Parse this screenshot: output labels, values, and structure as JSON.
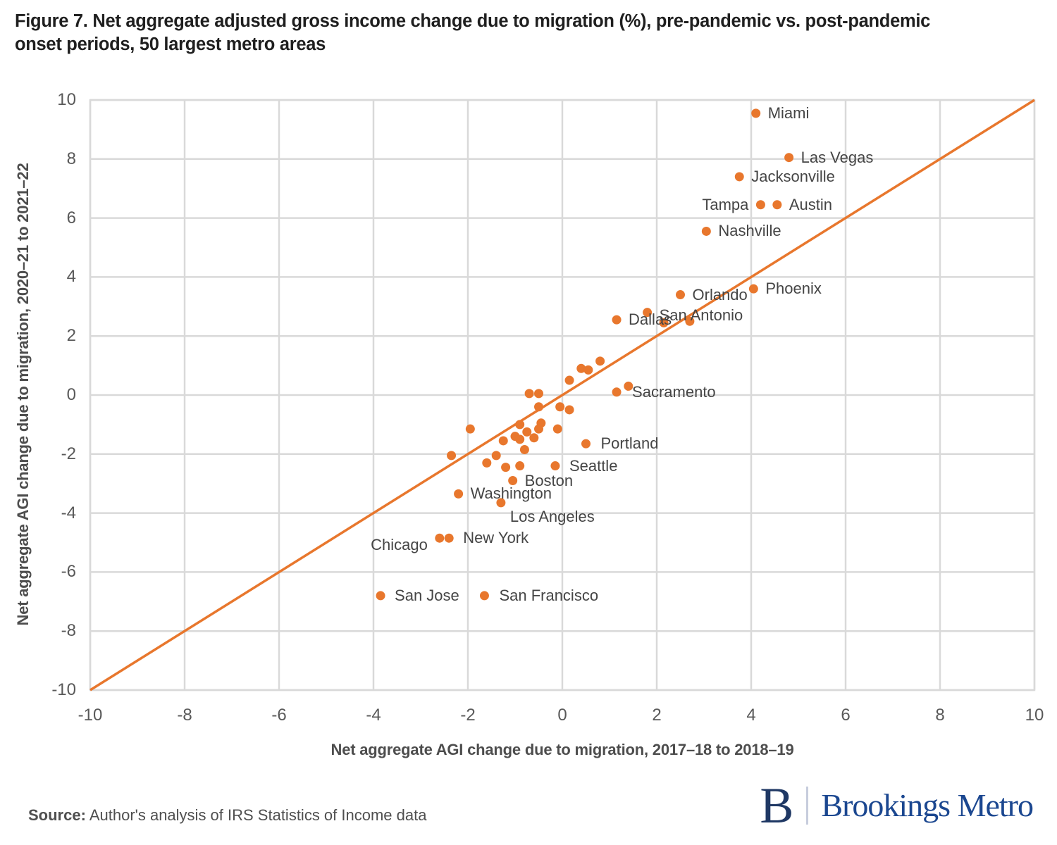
{
  "figure": {
    "title_lines": [
      "Figure 7. Net aggregate adjusted gross income change due to migration (%), pre-pandemic vs. post-pandemic",
      "onset periods, 50 largest metro areas"
    ],
    "source_label": "Source:",
    "source_text": "Author's analysis of IRS Statistics of Income data",
    "logo": {
      "monogram": "B",
      "name": "Brookings Metro"
    }
  },
  "colors": {
    "accent_orange": "#E8772D",
    "gridline": "#D9D9D9",
    "title_text": "#1F1F1F",
    "point_label_text": "#454545",
    "tick_text": "#595959",
    "logo_navy": "#1F3864",
    "logo_blue": "#1B4790"
  },
  "chart_data": {
    "type": "scatter",
    "title": "Figure 7. Net aggregate adjusted gross income change due to migration (%), pre-pandemic vs. post-pandemic onset periods, 50 largest metro areas",
    "xlabel": "Net aggregate AGI change due to migration, 2017–18 to 2018–19",
    "ylabel": "Net aggregate AGI change due to migration, 2020–21 to 2021–22",
    "xlim": [
      -10,
      10
    ],
    "ylim": [
      -10,
      10
    ],
    "xticks": [
      -10,
      -8,
      -6,
      -4,
      -2,
      0,
      2,
      4,
      6,
      8,
      10
    ],
    "yticks": [
      -10,
      -8,
      -6,
      -4,
      -2,
      0,
      2,
      4,
      6,
      8,
      10
    ],
    "grid": true,
    "legend": false,
    "reference_line": {
      "name": "identity-line y=x",
      "from": [
        -10,
        -10
      ],
      "to": [
        10,
        10
      ]
    },
    "points": [
      {
        "label": "Miami",
        "x": 4.1,
        "y": 9.55
      },
      {
        "label": "Las Vegas",
        "x": 4.8,
        "y": 8.05
      },
      {
        "label": "Jacksonville",
        "x": 3.75,
        "y": 7.4
      },
      {
        "label": "Tampa",
        "x": 4.2,
        "y": 6.45,
        "side": "left"
      },
      {
        "label": "Austin",
        "x": 4.55,
        "y": 6.45
      },
      {
        "label": "Nashville",
        "x": 3.05,
        "y": 5.55
      },
      {
        "label": "Phoenix",
        "x": 4.05,
        "y": 3.6
      },
      {
        "label": "Orlando",
        "x": 2.5,
        "y": 3.4
      },
      {
        "label": "San Antonio",
        "x": 1.8,
        "y": 2.8,
        "dy": 4
      },
      {
        "label": "Dallas",
        "x": 1.15,
        "y": 2.55
      },
      {
        "label": "Sacramento",
        "x": 1.15,
        "y": 0.1,
        "dx": 5
      },
      {
        "label": "Portland",
        "x": 0.5,
        "y": -1.65,
        "dx": 4
      },
      {
        "label": "Seattle",
        "x": -0.15,
        "y": -2.4,
        "dx": 3
      },
      {
        "label": "Boston",
        "x": -1.05,
        "y": -2.9
      },
      {
        "label": "Washington",
        "x": -2.2,
        "y": -3.35
      },
      {
        "label": "Los Angeles",
        "x": -1.3,
        "y": -3.65,
        "dx": -4,
        "dy": 20
      },
      {
        "label": "New York",
        "x": -2.4,
        "y": -4.85,
        "dx": 3
      },
      {
        "label": "Chicago",
        "x": -2.6,
        "y": -4.85,
        "side": "left",
        "dy": 10
      },
      {
        "label": "San Jose",
        "x": -3.85,
        "y": -6.8,
        "dx": 3
      },
      {
        "label": "San Francisco",
        "x": -1.65,
        "y": -6.8,
        "dx": 4
      },
      {
        "x": 1.4,
        "y": 0.3
      },
      {
        "x": 0.8,
        "y": 1.15
      },
      {
        "x": 0.4,
        "y": 0.9
      },
      {
        "x": 0.55,
        "y": 0.85
      },
      {
        "x": 0.15,
        "y": 0.5
      },
      {
        "x": -0.7,
        "y": 0.05
      },
      {
        "x": -0.5,
        "y": 0.05
      },
      {
        "x": -0.5,
        "y": -0.4
      },
      {
        "x": -0.05,
        "y": -0.4
      },
      {
        "x": 0.15,
        "y": -0.5
      },
      {
        "x": -1.95,
        "y": -1.15
      },
      {
        "x": -0.9,
        "y": -1.0
      },
      {
        "x": -0.45,
        "y": -0.95
      },
      {
        "x": -0.5,
        "y": -1.15
      },
      {
        "x": -0.1,
        "y": -1.15
      },
      {
        "x": -0.75,
        "y": -1.25
      },
      {
        "x": -1.0,
        "y": -1.4
      },
      {
        "x": -0.9,
        "y": -1.5
      },
      {
        "x": -1.25,
        "y": -1.55
      },
      {
        "x": -0.6,
        "y": -1.45
      },
      {
        "x": -0.8,
        "y": -1.85
      },
      {
        "x": -2.35,
        "y": -2.05
      },
      {
        "x": -1.4,
        "y": -2.05
      },
      {
        "x": -1.6,
        "y": -2.3
      },
      {
        "x": -1.2,
        "y": -2.45
      },
      {
        "x": -0.9,
        "y": -2.4
      },
      {
        "x": 2.15,
        "y": 2.45
      },
      {
        "x": 2.7,
        "y": 2.5
      }
    ]
  }
}
